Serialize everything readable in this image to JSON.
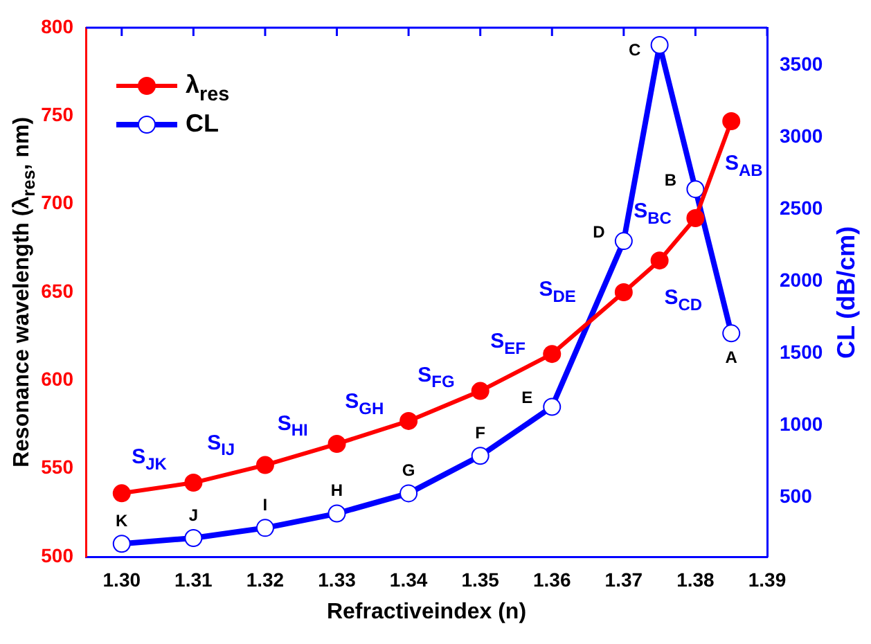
{
  "chart_data": {
    "type": "line",
    "xlabel": "Refractiveindex (n)",
    "ylabel": "Resonance wavelength (λ$_{res}$, nm)",
    "y2label": "CL (dB/cm)",
    "x": [
      1.3,
      1.31,
      1.32,
      1.33,
      1.34,
      1.35,
      1.36,
      1.37,
      1.375,
      1.38,
      1.385
    ],
    "series": [
      {
        "name": "λ$_{res}$",
        "color": "#ff0000",
        "marker": "circle",
        "values": [
          536,
          542,
          552,
          564,
          577,
          594,
          615,
          650,
          668,
          692,
          747
        ]
      },
      {
        "name": "CL",
        "color": "#0000ff",
        "marker": "circle",
        "axis": "y2",
        "values": [
          180,
          220,
          290,
          390,
          530,
          790,
          1130,
          2280,
          3640,
          2640,
          1640
        ]
      }
    ],
    "xlim": [
      1.295,
      1.39
    ],
    "xticks": [
      {
        "value": 1.3,
        "label": "1.30"
      },
      {
        "value": 1.31,
        "label": "1.31"
      },
      {
        "value": 1.32,
        "label": "1.32"
      },
      {
        "value": 1.33,
        "label": "1.33"
      },
      {
        "value": 1.34,
        "label": "1.34"
      },
      {
        "value": 1.35,
        "label": "1.35"
      },
      {
        "value": 1.36,
        "label": "1.36"
      },
      {
        "value": 1.37,
        "label": "1.37"
      },
      {
        "value": 1.38,
        "label": "1.38"
      },
      {
        "value": 1.39,
        "label": "1.39"
      }
    ],
    "ylim": [
      500,
      800
    ],
    "yticks": [
      500,
      550,
      600,
      650,
      700,
      750,
      800
    ],
    "y2lim": [
      90,
      3760
    ],
    "y2ticks": [
      500,
      1000,
      1500,
      2000,
      2500,
      3000,
      3500
    ],
    "legend": "top left",
    "grid": false,
    "annotations": [
      "K",
      "J",
      "I",
      "H",
      "G",
      "F",
      "E",
      "D",
      "C",
      "B",
      "A",
      "S$_{JK}$",
      "S$_{IJ}$",
      "S$_{HI}$",
      "S$_{GH}$",
      "S$_{FG}$",
      "S$_{EF}$",
      "S$_{DE}$",
      "S$_{CD}$",
      "S$_{BC}$",
      "S$_{AB}$"
    ]
  }
}
